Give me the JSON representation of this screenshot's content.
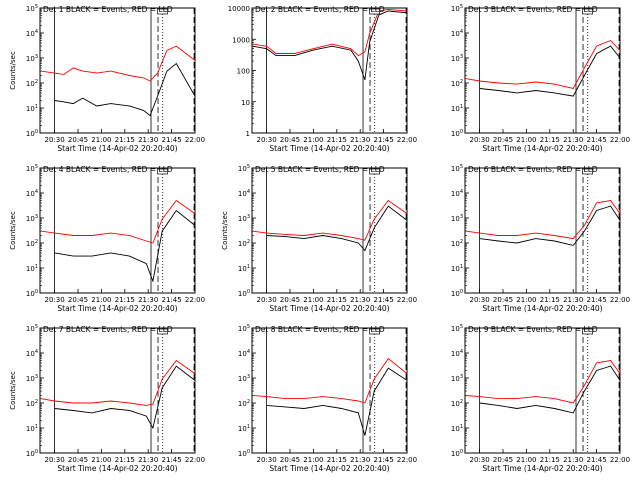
{
  "chart_data": [
    {
      "type": "line",
      "title": "Det 1  BLACK = Events, RED = LLD",
      "xlabel": "Start Time (14-Apr-02 20:20:40)",
      "ylabel": "Counts/sec",
      "yscale": "log",
      "ylim": [
        1,
        100000
      ],
      "yticks": [
        "10^0",
        "10^1",
        "10^2",
        "10^3",
        "10^4",
        "10^5"
      ],
      "xticks": [
        "20:30",
        "20:45",
        "21:00",
        "21:15",
        "21:30",
        "21:45",
        "22:00"
      ],
      "series": [
        {
          "color": "#000000",
          "x": [
            20.5,
            20.58,
            20.7,
            20.8,
            20.95,
            21.1,
            21.3,
            21.45,
            21.52,
            21.6,
            21.7,
            21.8,
            22.0
          ],
          "y": [
            20,
            18,
            15,
            25,
            12,
            15,
            12,
            8,
            5,
            30,
            300,
            600,
            30
          ]
        },
        {
          "color": "#ff0000",
          "x": [
            20.35,
            20.5,
            20.6,
            20.7,
            20.8,
            20.95,
            21.1,
            21.3,
            21.45,
            21.52,
            21.6,
            21.7,
            21.8,
            22.0
          ],
          "y": [
            300,
            250,
            220,
            400,
            300,
            250,
            300,
            200,
            160,
            120,
            250,
            2000,
            3000,
            800
          ]
        }
      ]
    },
    {
      "type": "line",
      "title": "Det 2  BLACK = Events, RED = LLD",
      "xlabel": "Start Time (14-Apr-02 20:20:40)",
      "ylabel": "",
      "yscale": "log",
      "ylim": [
        1,
        10000
      ],
      "yticks": [
        "1",
        "10",
        "100",
        "1000",
        "10000"
      ],
      "xticks": [
        "20:30",
        "20:45",
        "21:00",
        "21:15",
        "21:30",
        "21:45",
        "22:00"
      ],
      "series": [
        {
          "color": "#000000",
          "x": [
            20.35,
            20.5,
            20.6,
            20.8,
            21.0,
            21.2,
            21.4,
            21.48,
            21.55,
            21.6,
            21.7,
            21.8,
            22.0
          ],
          "y": [
            600,
            500,
            300,
            300,
            450,
            600,
            450,
            200,
            50,
            800,
            6000,
            8000,
            7000
          ]
        },
        {
          "color": "#ff0000",
          "x": [
            20.35,
            20.5,
            20.6,
            20.8,
            21.0,
            21.2,
            21.4,
            21.48,
            21.55,
            21.6,
            21.7,
            21.8,
            22.0
          ],
          "y": [
            700,
            600,
            350,
            350,
            500,
            700,
            500,
            300,
            400,
            1500,
            8000,
            9000,
            8000
          ]
        }
      ]
    },
    {
      "type": "line",
      "title": "Det 3  BLACK = Events, RED = LLD",
      "xlabel": "Start Time (14-Apr-02 20:20:40)",
      "ylabel": "",
      "yscale": "log",
      "ylim": [
        1,
        100000
      ],
      "yticks": [
        "10^0",
        "10^1",
        "10^2",
        "10^3",
        "10^4",
        "10^5"
      ],
      "xticks": [
        "20:30",
        "20:45",
        "21:00",
        "21:15",
        "21:30",
        "21:45",
        "22:00"
      ],
      "series": [
        {
          "color": "#000000",
          "x": [
            20.5,
            20.7,
            20.9,
            21.1,
            21.3,
            21.5,
            21.62,
            21.75,
            21.9,
            22.0
          ],
          "y": [
            60,
            50,
            40,
            50,
            40,
            30,
            200,
            1500,
            3000,
            1000
          ]
        },
        {
          "color": "#ff0000",
          "x": [
            20.35,
            20.5,
            20.7,
            20.9,
            21.1,
            21.3,
            21.5,
            21.62,
            21.75,
            21.9,
            22.0
          ],
          "y": [
            150,
            120,
            100,
            90,
            110,
            90,
            60,
            400,
            3000,
            5000,
            2000
          ]
        }
      ]
    },
    {
      "type": "line",
      "title": "Det 4  BLACK = Events, RED = LLD",
      "xlabel": "Start Time (14-Apr-02 20:20:40)",
      "ylabel": "Counts/sec",
      "yscale": "log",
      "ylim": [
        1,
        100000
      ],
      "yticks": [
        "10^0",
        "10^1",
        "10^2",
        "10^3",
        "10^4",
        "10^5"
      ],
      "xticks": [
        "20:30",
        "20:45",
        "21:00",
        "21:15",
        "21:30",
        "21:45",
        "22:00"
      ],
      "series": [
        {
          "color": "#000000",
          "x": [
            20.5,
            20.7,
            20.9,
            21.1,
            21.3,
            21.48,
            21.55,
            21.65,
            21.8,
            22.0
          ],
          "y": [
            40,
            30,
            30,
            40,
            30,
            15,
            3,
            300,
            2000,
            500
          ]
        },
        {
          "color": "#ff0000",
          "x": [
            20.35,
            20.5,
            20.7,
            20.9,
            21.1,
            21.3,
            21.48,
            21.55,
            21.65,
            21.8,
            22.0
          ],
          "y": [
            300,
            250,
            200,
            200,
            250,
            200,
            120,
            100,
            900,
            5000,
            1500
          ]
        }
      ]
    },
    {
      "type": "line",
      "title": "Det 5  BLACK = Events, RED = LLD",
      "xlabel": "Start Time (14-Apr-02 20:20:40)",
      "ylabel": "Counts/sec",
      "yscale": "log",
      "ylim": [
        1,
        100000
      ],
      "yticks": [
        "10^0",
        "10^1",
        "10^2",
        "10^3",
        "10^4",
        "10^5"
      ],
      "xticks": [
        "20:30",
        "20:45",
        "21:00",
        "21:15",
        "21:30",
        "21:45",
        "22:00"
      ],
      "series": [
        {
          "color": "#000000",
          "x": [
            20.5,
            20.7,
            20.9,
            21.1,
            21.3,
            21.48,
            21.55,
            21.65,
            21.8,
            22.0
          ],
          "y": [
            200,
            180,
            150,
            200,
            150,
            100,
            50,
            400,
            3000,
            800
          ]
        },
        {
          "color": "#ff0000",
          "x": [
            20.35,
            20.5,
            20.7,
            20.9,
            21.1,
            21.3,
            21.48,
            21.55,
            21.65,
            21.8,
            22.0
          ],
          "y": [
            300,
            250,
            220,
            200,
            250,
            200,
            150,
            130,
            900,
            5000,
            1500
          ]
        }
      ]
    },
    {
      "type": "line",
      "title": "Det 6  BLACK = Events, RED = LLD",
      "xlabel": "Start Time (14-Apr-02 20:20:40)",
      "ylabel": "",
      "yscale": "log",
      "ylim": [
        1,
        100000
      ],
      "yticks": [
        "10^0",
        "10^1",
        "10^2",
        "10^3",
        "10^4",
        "10^5"
      ],
      "xticks": [
        "20:30",
        "20:45",
        "21:00",
        "21:15",
        "21:30",
        "21:45",
        "22:00"
      ],
      "series": [
        {
          "color": "#000000",
          "x": [
            20.5,
            20.7,
            20.9,
            21.1,
            21.3,
            21.5,
            21.62,
            21.75,
            21.9,
            22.0
          ],
          "y": [
            150,
            120,
            100,
            150,
            120,
            80,
            300,
            2000,
            3000,
            800
          ]
        },
        {
          "color": "#ff0000",
          "x": [
            20.35,
            20.5,
            20.7,
            20.9,
            21.1,
            21.3,
            21.5,
            21.62,
            21.75,
            21.9,
            22.0
          ],
          "y": [
            300,
            250,
            200,
            200,
            250,
            200,
            150,
            500,
            4000,
            5000,
            1500
          ]
        }
      ]
    },
    {
      "type": "line",
      "title": "Det 7  BLACK = Events, RED = LLD",
      "xlabel": "Start Time (14-Apr-02 20:20:40)",
      "ylabel": "Counts/sec",
      "yscale": "log",
      "ylim": [
        1,
        100000
      ],
      "yticks": [
        "10^0",
        "10^1",
        "10^2",
        "10^3",
        "10^4",
        "10^5"
      ],
      "xticks": [
        "20:30",
        "20:45",
        "21:00",
        "21:15",
        "21:30",
        "21:45",
        "22:00"
      ],
      "series": [
        {
          "color": "#000000",
          "x": [
            20.5,
            20.7,
            20.9,
            21.1,
            21.3,
            21.48,
            21.55,
            21.65,
            21.8,
            22.0
          ],
          "y": [
            60,
            50,
            40,
            60,
            50,
            30,
            10,
            400,
            3000,
            800
          ]
        },
        {
          "color": "#ff0000",
          "x": [
            20.35,
            20.5,
            20.7,
            20.9,
            21.1,
            21.3,
            21.48,
            21.55,
            21.65,
            21.8,
            22.0
          ],
          "y": [
            150,
            120,
            100,
            100,
            120,
            100,
            80,
            90,
            900,
            5000,
            1500
          ]
        }
      ]
    },
    {
      "type": "line",
      "title": "Det 8  BLACK = Events, RED = LLD",
      "xlabel": "Start Time (14-Apr-02 20:20:40)",
      "ylabel": "",
      "yscale": "log",
      "ylim": [
        1,
        100000
      ],
      "yticks": [
        "10^0",
        "10^1",
        "10^2",
        "10^3",
        "10^4",
        "10^5"
      ],
      "xticks": [
        "20:30",
        "20:45",
        "21:00",
        "21:15",
        "21:30",
        "21:45",
        "22:00"
      ],
      "series": [
        {
          "color": "#000000",
          "x": [
            20.5,
            20.7,
            20.9,
            21.1,
            21.3,
            21.48,
            21.55,
            21.65,
            21.8,
            22.0
          ],
          "y": [
            80,
            70,
            60,
            80,
            60,
            40,
            5,
            300,
            2500,
            800
          ]
        },
        {
          "color": "#ff0000",
          "x": [
            20.35,
            20.5,
            20.7,
            20.9,
            21.1,
            21.3,
            21.48,
            21.55,
            21.65,
            21.8,
            22.0
          ],
          "y": [
            200,
            180,
            150,
            150,
            180,
            150,
            120,
            100,
            900,
            6000,
            1500
          ]
        }
      ]
    },
    {
      "type": "line",
      "title": "Det 9  BLACK = Events, RED = LLD",
      "xlabel": "Start Time (14-Apr-02 20:20:40)",
      "ylabel": "",
      "yscale": "log",
      "ylim": [
        1,
        100000
      ],
      "yticks": [
        "10^0",
        "10^1",
        "10^2",
        "10^3",
        "10^4",
        "10^5"
      ],
      "xticks": [
        "20:30",
        "20:45",
        "21:00",
        "21:15",
        "21:30",
        "21:45",
        "22:00"
      ],
      "series": [
        {
          "color": "#000000",
          "x": [
            20.5,
            20.7,
            20.9,
            21.1,
            21.3,
            21.5,
            21.62,
            21.75,
            21.9,
            22.0
          ],
          "y": [
            100,
            80,
            60,
            80,
            60,
            40,
            300,
            2000,
            3000,
            800
          ]
        },
        {
          "color": "#ff0000",
          "x": [
            20.35,
            20.5,
            20.7,
            20.9,
            21.1,
            21.3,
            21.5,
            21.62,
            21.75,
            21.9,
            22.0
          ],
          "y": [
            200,
            180,
            150,
            150,
            180,
            150,
            100,
            500,
            4000,
            5000,
            1500
          ]
        }
      ]
    }
  ]
}
